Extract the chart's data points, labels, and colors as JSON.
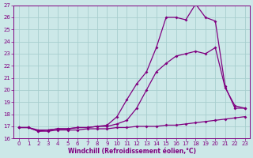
{
  "xlabel": "Windchill (Refroidissement éolien,°C)",
  "x": [
    0,
    1,
    2,
    3,
    4,
    5,
    6,
    7,
    8,
    9,
    10,
    11,
    12,
    13,
    14,
    15,
    16,
    17,
    18,
    19,
    20,
    21,
    22,
    23
  ],
  "line1": [
    16.9,
    16.9,
    16.6,
    16.6,
    16.7,
    16.7,
    16.7,
    16.8,
    16.8,
    16.8,
    16.9,
    16.9,
    17.0,
    17.0,
    17.0,
    17.1,
    17.1,
    17.2,
    17.3,
    17.4,
    17.5,
    17.6,
    17.7,
    17.8
  ],
  "line2": [
    16.9,
    16.9,
    16.7,
    16.7,
    16.8,
    16.8,
    16.9,
    16.9,
    17.0,
    17.0,
    17.2,
    17.5,
    18.5,
    20.0,
    21.5,
    22.2,
    22.8,
    23.0,
    23.2,
    23.0,
    23.5,
    20.2,
    18.7,
    18.5
  ],
  "line3": [
    16.9,
    16.9,
    16.6,
    16.7,
    16.8,
    16.8,
    16.9,
    16.9,
    17.0,
    17.1,
    17.8,
    19.2,
    20.5,
    21.5,
    23.5,
    26.0,
    26.0,
    25.8,
    27.1,
    26.0,
    25.7,
    20.3,
    18.5,
    18.5
  ],
  "line_color": "#800080",
  "bg_color": "#cce8e8",
  "grid_color": "#a8cece",
  "ylim": [
    16,
    27
  ],
  "xlim_min": -0.5,
  "xlim_max": 23.5,
  "yticks": [
    16,
    17,
    18,
    19,
    20,
    21,
    22,
    23,
    24,
    25,
    26,
    27
  ],
  "xticks": [
    0,
    1,
    2,
    3,
    4,
    5,
    6,
    7,
    8,
    9,
    10,
    11,
    12,
    13,
    14,
    15,
    16,
    17,
    18,
    19,
    20,
    21,
    22,
    23
  ],
  "markersize": 2.0,
  "linewidth": 0.9,
  "tick_fontsize": 5,
  "label_fontsize": 5.5
}
